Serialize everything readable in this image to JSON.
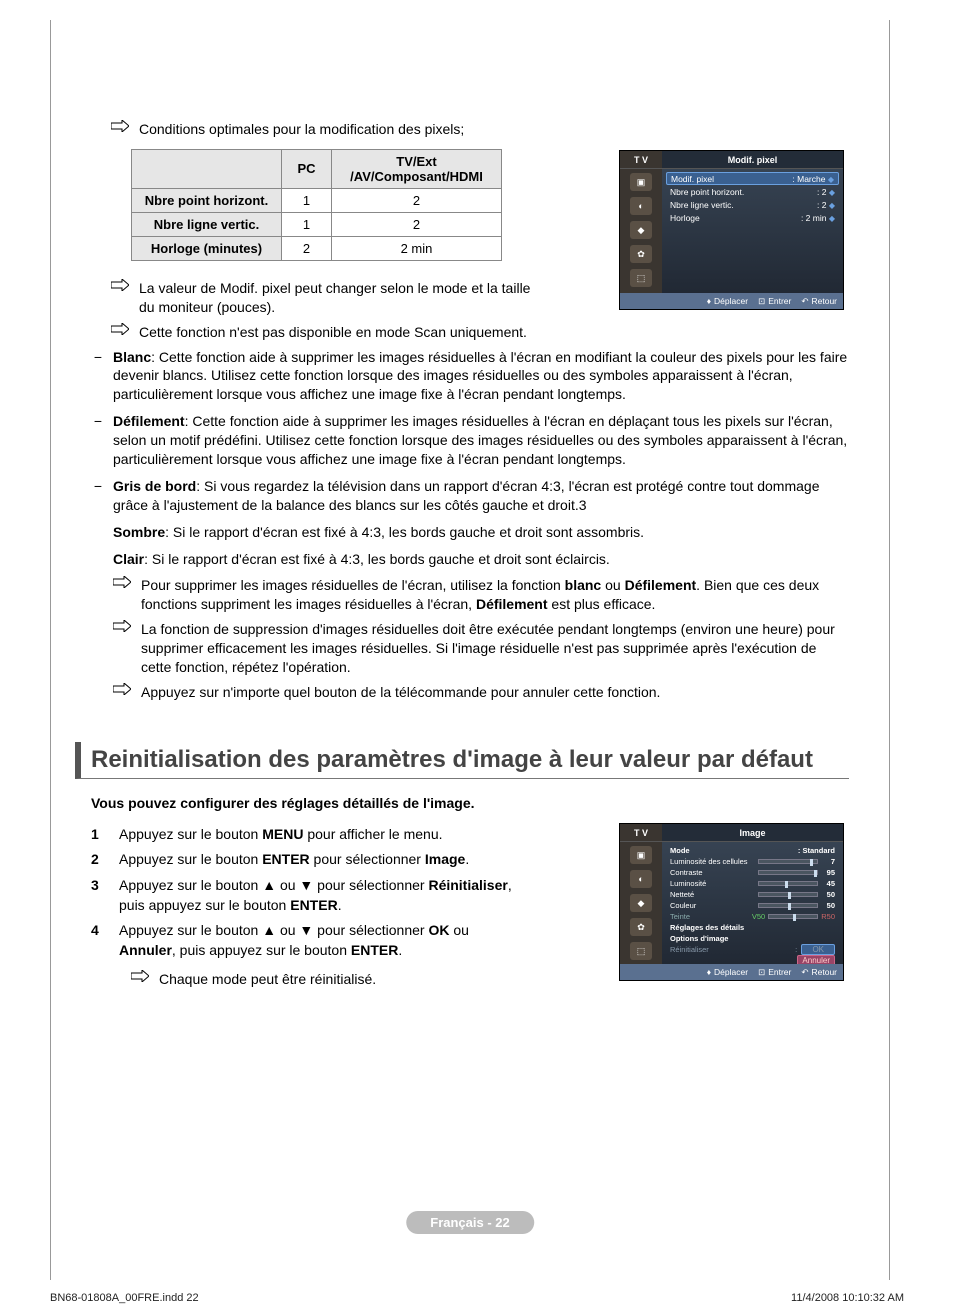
{
  "intro_arrow": "Conditions optimales pour la modification des pixels;",
  "table": {
    "headers": [
      "",
      "PC",
      "TV/Ext /AV/Composant/HDMI"
    ],
    "rows": [
      [
        "Nbre point horizont.",
        "1",
        "2"
      ],
      [
        "Nbre ligne vertic.",
        "1",
        "2"
      ],
      [
        "Horloge (minutes)",
        "2",
        "2 min"
      ]
    ]
  },
  "tv1": {
    "label": "T V",
    "title": "Modif. pixel",
    "rows": [
      {
        "name": "Modif. pixel",
        "value": ": Marche",
        "hl": true
      },
      {
        "name": "Nbre point horizont.",
        "value": ": 2"
      },
      {
        "name": "Nbre ligne vertic.",
        "value": ": 2"
      },
      {
        "name": "Horloge",
        "value": ": 2 min"
      }
    ],
    "footer": {
      "move": "Déplacer",
      "enter": "Entrer",
      "return": "Retour"
    }
  },
  "notes": {
    "n1": "La valeur de Modif. pixel peut changer selon le mode et la taille du moniteur (pouces).",
    "n2": "Cette fonction n'est pas disponible en mode Scan uniquement."
  },
  "dash": {
    "blanc_label": "Blanc",
    "blanc": ": Cette fonction aide à supprimer les images résiduelles à l'écran en modifiant la couleur des pixels pour les faire devenir blancs. Utilisez cette fonction lorsque des images résiduelles ou des symboles apparaissent à l'écran, particulièrement lorsque vous affichez une image fixe à l'écran pendant longtemps.",
    "defilement_label": "Défilement",
    "defilement": ": Cette fonction aide à supprimer les images résiduelles à l'écran en déplaçant tous les pixels sur l'écran, selon un motif prédéfini. Utilisez cette fonction lorsque des images résiduelles ou des symboles apparaissent à l'écran, particulièrement lorsque vous affichez une image fixe à l'écran pendant longtemps.",
    "gris_label": "Gris de bord",
    "gris": ": Si vous regardez la télévision dans un rapport d'écran 4:3, l'écran est protégé contre tout dommage grâce à l'ajustement de la balance des blancs sur les côtés gauche et droit.3"
  },
  "sombre_label": "Sombre",
  "sombre": ": Si le rapport d'écran est fixé à 4:3, les bords gauche et droit sont assombris.",
  "clair_label": "Clair",
  "clair": ": Si le rapport d'écran est fixé à 4:3, les bords gauche et droit sont éclaircis.",
  "sub_arrows": {
    "a1a": "Pour supprimer les images résiduelles de l'écran, utilisez la fonction ",
    "a1b": "blanc",
    "a1c": " ou ",
    "a1d": "Défilement",
    "a1e": ". Bien que ces deux fonctions suppriment les images résiduelles à l'écran, ",
    "a1f": "Défilement",
    "a1g": " est plus efficace.",
    "a2": "La fonction de suppression d'images résiduelles doit être exécutée pendant longtemps (environ une heure) pour supprimer efficacement les images résiduelles. Si l'image résiduelle n'est pas supprimée après l'exécution de cette fonction, répétez l'opération.",
    "a3": "Appuyez sur n'importe quel bouton de la télécommande pour annuler cette fonction."
  },
  "section_title": "Reinitialisation des paramètres d'image à leur valeur par défaut",
  "section_intro": "Vous pouvez configurer des réglages détaillés de l'image.",
  "steps": {
    "s1a": "Appuyez sur le bouton ",
    "s1b": "MENU",
    "s1c": " pour afficher le menu.",
    "s2a": "Appuyez sur le bouton ",
    "s2b": "ENTER",
    "s2c": " pour sélectionner ",
    "s2d": "Image",
    "s2e": ".",
    "s3a": "Appuyez sur le bouton ▲ ou ▼ pour sélectionner ",
    "s3b": "Réinitialiser",
    "s3c": ", puis appuyez sur le bouton ",
    "s3d": "ENTER",
    "s3e": ".",
    "s4a": "Appuyez sur le bouton ▲ ou ▼ pour sélectionner ",
    "s4b": "OK",
    "s4c": " ou ",
    "s4d": "Annuler",
    "s4e": ", puis appuyez sur le bouton ",
    "s4f": "ENTER",
    "s4g": "."
  },
  "step_note": "Chaque mode peut être réinitialisé.",
  "tv2": {
    "label": "T V",
    "title": "Image",
    "mode_label": "Mode",
    "mode_value": ": Standard",
    "rows": [
      {
        "name": "Luminosité des cellules",
        "val": "7",
        "pos": 88
      },
      {
        "name": "Contraste",
        "val": "95",
        "pos": 95
      },
      {
        "name": "Luminosité",
        "val": "45",
        "pos": 45
      },
      {
        "name": "Netteté",
        "val": "50",
        "pos": 50
      },
      {
        "name": "Couleur",
        "val": "50",
        "pos": 50
      }
    ],
    "teinte_label": "Teinte",
    "teinte_v": "V50",
    "teinte_r": "R50",
    "details": "Réglages des détails",
    "options": "Options d'image",
    "reinit": "Réinitialiser",
    "ok": "OK",
    "annuler": "Annuler",
    "footer": {
      "move": "Déplacer",
      "enter": "Entrer",
      "return": "Retour"
    }
  },
  "page_pill": "Français - 22",
  "footer_left": "BN68-01808A_00FRE.indd   22",
  "footer_right": "11/4/2008   10:10:32 AM"
}
